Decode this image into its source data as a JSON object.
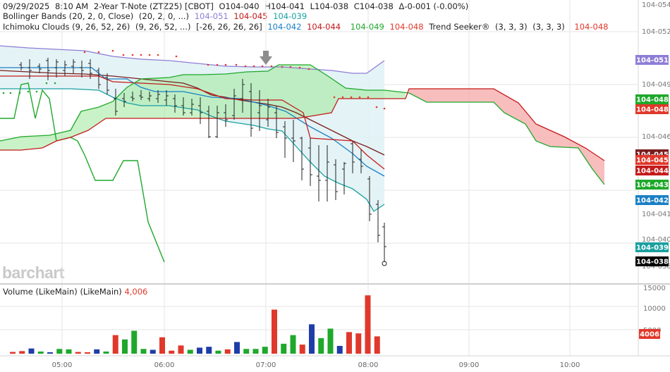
{
  "header": {
    "timestamp": "09/29/2025",
    "time": "8:10 AM",
    "symbol": "2-Year T-Note (ZTZ25) [CBOT]",
    "open": "O104-040",
    "high": "H104-041",
    "low": "L104-038",
    "close": "C104-038",
    "change": "Δ-0-001 (-0.00%)"
  },
  "indicators": {
    "bollinger": {
      "label": "Bollinger Bands (20, 2, 0, Close)",
      "params": "(20, 2, 0, ...)",
      "upper": "104-051",
      "middle": "104-045",
      "lower": "104-039"
    },
    "ichimoku": {
      "label": "Ichimoku Clouds (9, 26, 52, 26)",
      "params": "(9, 26, 52, ...)",
      "params2": "[-26, 26, 26, 26]",
      "v1": "104-042",
      "v2": "104-044",
      "v3": "104-049",
      "v4": "104-048"
    },
    "trend_seeker": {
      "label": "Trend Seeker®",
      "params": "(3, 3, 3)",
      "params2": "(3, 3, 3)",
      "value": "104-048"
    }
  },
  "volume": {
    "label": "Volume (LikeMain)",
    "params": "(LikeMain)",
    "value": "4,006"
  },
  "watermark": "barchart",
  "colors": {
    "up": "#1fa82b",
    "down": "#e0382b",
    "neutral": "#1f3da8",
    "bollinger": "#8e7dd6",
    "ichimoku_cloud_up": "#9ee89a",
    "ichimoku_cloud_down": "#f6a8a8"
  },
  "chart_data": {
    "type": "candlestick",
    "x_time_labels": [
      "05:00",
      "06:00",
      "07:00",
      "08:00",
      "09:00",
      "10:00"
    ],
    "price_axis_labels": [
      "104-054",
      "104-052",
      "104-049",
      "104-046",
      "104-041",
      "104-040",
      "104-038"
    ],
    "price_badges": [
      {
        "label": "104-051",
        "color": "#8e7dd6"
      },
      {
        "label": "104-048",
        "color": "#1fa82b"
      },
      {
        "label": "104-048",
        "color": "#e0382b"
      },
      {
        "label": "104-045",
        "color": "#7a1f1f"
      },
      {
        "label": "104-045",
        "color": "#e0382b"
      },
      {
        "label": "104-044",
        "color": "#c41a1a"
      },
      {
        "label": "104-043",
        "color": "#1fa82b"
      },
      {
        "label": "104-042",
        "color": "#1b7fc4"
      },
      {
        "label": "104-039",
        "color": "#1aa0a0"
      },
      {
        "label": "104-038",
        "color": "#000000"
      }
    ],
    "volume_axis_labels": [
      "15000",
      "10000",
      "5000"
    ],
    "volume_badge": "4006",
    "volume_bars": [
      {
        "v": 400,
        "c": "down"
      },
      {
        "v": 600,
        "c": "down"
      },
      {
        "v": 1200,
        "c": "neutral"
      },
      {
        "v": 500,
        "c": "up"
      },
      {
        "v": 300,
        "c": "neutral"
      },
      {
        "v": 1100,
        "c": "up"
      },
      {
        "v": 1000,
        "c": "up"
      },
      {
        "v": 400,
        "c": "down"
      },
      {
        "v": 300,
        "c": "down"
      },
      {
        "v": 1000,
        "c": "neutral"
      },
      {
        "v": 500,
        "c": "up"
      },
      {
        "v": 4300,
        "c": "down"
      },
      {
        "v": 3300,
        "c": "up"
      },
      {
        "v": 5300,
        "c": "up"
      },
      {
        "v": 1100,
        "c": "up"
      },
      {
        "v": 900,
        "c": "neutral"
      },
      {
        "v": 3800,
        "c": "down"
      },
      {
        "v": 700,
        "c": "down"
      },
      {
        "v": 1900,
        "c": "down"
      },
      {
        "v": 900,
        "c": "up"
      },
      {
        "v": 1400,
        "c": "neutral"
      },
      {
        "v": 1600,
        "c": "neutral"
      },
      {
        "v": 700,
        "c": "up"
      },
      {
        "v": 1000,
        "c": "down"
      },
      {
        "v": 2700,
        "c": "neutral"
      },
      {
        "v": 1100,
        "c": "up"
      },
      {
        "v": 1100,
        "c": "up"
      },
      {
        "v": 1600,
        "c": "up"
      },
      {
        "v": 10200,
        "c": "down"
      },
      {
        "v": 2300,
        "c": "up"
      },
      {
        "v": 4300,
        "c": "up"
      },
      {
        "v": 2100,
        "c": "down"
      },
      {
        "v": 6800,
        "c": "neutral"
      },
      {
        "v": 3600,
        "c": "up"
      },
      {
        "v": 5800,
        "c": "up"
      },
      {
        "v": 1800,
        "c": "neutral"
      },
      {
        "v": 5000,
        "c": "down"
      },
      {
        "v": 4700,
        "c": "down"
      },
      {
        "v": 13500,
        "c": "down"
      },
      {
        "v": 4006,
        "c": "down"
      }
    ]
  }
}
